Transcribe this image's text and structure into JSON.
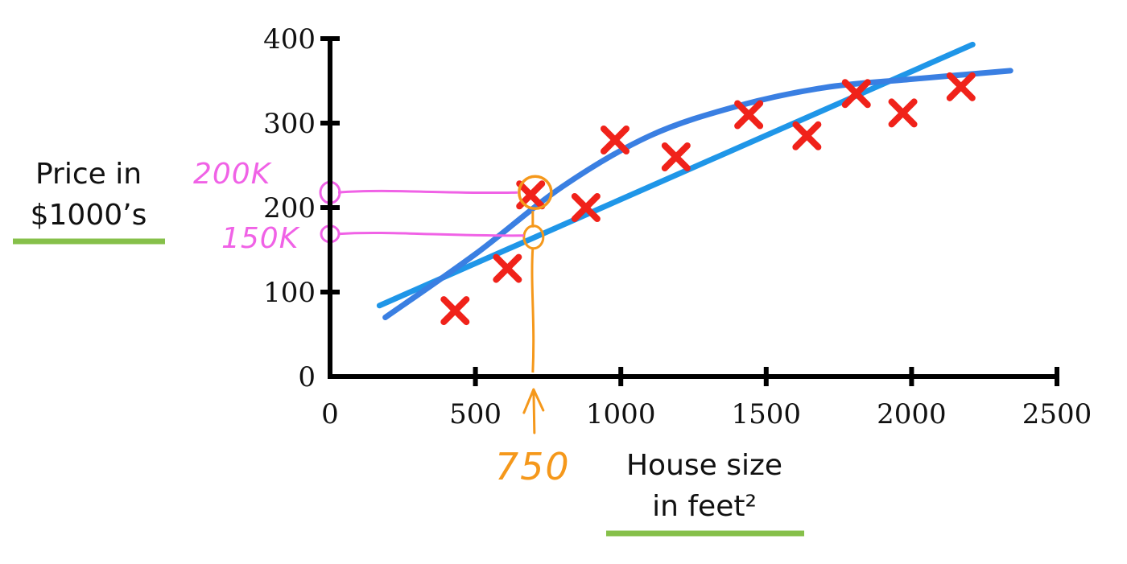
{
  "chart_data": {
    "type": "scatter",
    "title": "",
    "xlabel_lines": [
      "House size",
      "in feet²"
    ],
    "ylabel_lines": [
      "Price in",
      "$1000’s"
    ],
    "xlim": [
      0,
      2500
    ],
    "ylim": [
      0,
      400
    ],
    "x_ticks": [
      0,
      500,
      1000,
      1500,
      2000,
      2500
    ],
    "y_ticks": [
      0,
      100,
      200,
      300,
      400
    ],
    "grid": false,
    "points": [
      {
        "x": 430,
        "y": 78
      },
      {
        "x": 610,
        "y": 128
      },
      {
        "x": 690,
        "y": 215
      },
      {
        "x": 880,
        "y": 200
      },
      {
        "x": 980,
        "y": 280
      },
      {
        "x": 1190,
        "y": 260
      },
      {
        "x": 1440,
        "y": 310
      },
      {
        "x": 1640,
        "y": 285
      },
      {
        "x": 1810,
        "y": 335
      },
      {
        "x": 1970,
        "y": 312
      },
      {
        "x": 2170,
        "y": 343
      }
    ],
    "fits": [
      {
        "kind": "straight-line",
        "x": [
          170,
          2210
        ],
        "y": [
          84,
          393
        ]
      },
      {
        "kind": "curve",
        "x": [
          190,
          500,
          800,
          1100,
          1400,
          1700,
          2000,
          2340
        ],
        "y": [
          70,
          145,
          225,
          285,
          320,
          342,
          352,
          362
        ]
      }
    ],
    "annotations": {
      "x_marker": {
        "x": 700,
        "label": "750"
      },
      "y_markers": [
        {
          "y": 215,
          "label": "200K"
        },
        {
          "y": 165,
          "label": "150K"
        }
      ]
    }
  },
  "colors": {
    "points": "#f0221a",
    "straight_fit": "#1f96e8",
    "curve_fit": "#3a7fe2",
    "pink_annotation": "#f062e6",
    "orange_annotation": "#f5981b",
    "underline": "#86c04a",
    "axis": "#000000"
  }
}
